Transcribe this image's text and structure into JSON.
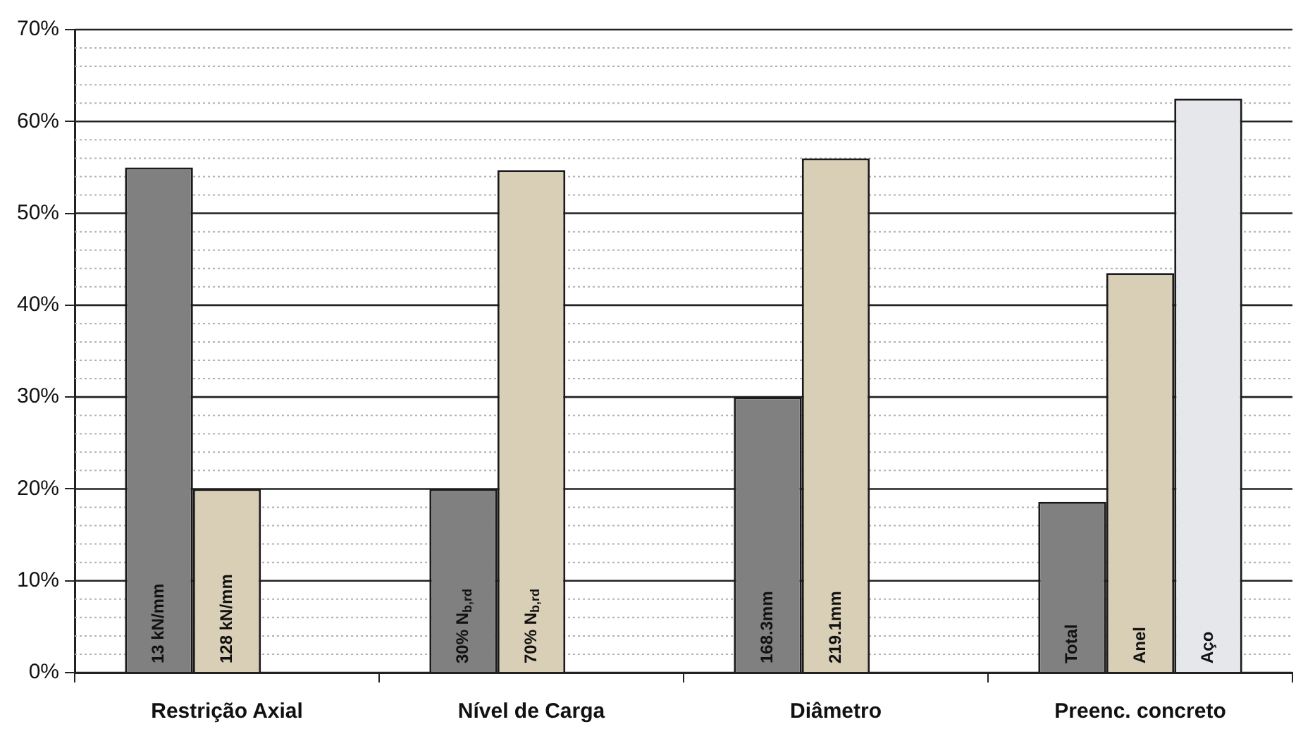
{
  "chart_data": {
    "type": "bar",
    "categories": [
      "Restrição Axial",
      "Nível de Carga",
      "Diâmetro",
      "Preenc. concreto"
    ],
    "series": [
      {
        "color": "#808080",
        "values": [
          55,
          20,
          30,
          18.6
        ]
      },
      {
        "color": "#d9ceb6",
        "values": [
          20,
          54.7,
          56,
          43.5
        ]
      },
      {
        "color": "#e6e7ea",
        "values": [
          null,
          null,
          null,
          62.5
        ]
      }
    ],
    "annotations": [
      "13 kN/mm",
      "128 kN/mm",
      "30% N$_{b,rd}$",
      "70% N$_{b,rd}$",
      "168.3mm",
      "219.1mm",
      "Total",
      "Anel",
      "Aço"
    ],
    "ylim": [
      0,
      70
    ],
    "yticks": [
      {
        "value": 0,
        "label": "0%"
      },
      {
        "value": 2,
        "label": null
      },
      {
        "value": 4,
        "label": null
      },
      {
        "value": 6,
        "label": null
      },
      {
        "value": 8,
        "label": null
      },
      {
        "value": 10,
        "label": "10%"
      },
      {
        "value": 12,
        "label": null
      },
      {
        "value": 14,
        "label": null
      },
      {
        "value": 16,
        "label": null
      },
      {
        "value": 18,
        "label": null
      },
      {
        "value": 20,
        "label": "20%"
      },
      {
        "value": 22,
        "label": null
      },
      {
        "value": 24,
        "label": null
      },
      {
        "value": 26,
        "label": null
      },
      {
        "value": 28,
        "label": null
      },
      {
        "value": 30,
        "label": "30%"
      },
      {
        "value": 32,
        "label": null
      },
      {
        "value": 34,
        "label": null
      },
      {
        "value": 36,
        "label": null
      },
      {
        "value": 38,
        "label": null
      },
      {
        "value": 40,
        "label": "40%"
      },
      {
        "value": 42,
        "label": null
      },
      {
        "value": 44,
        "label": null
      },
      {
        "value": 46,
        "label": null
      },
      {
        "value": 48,
        "label": null
      },
      {
        "value": 50,
        "label": "50%"
      },
      {
        "value": 52,
        "label": null
      },
      {
        "value": 54,
        "label": null
      },
      {
        "value": 56,
        "label": null
      },
      {
        "value": 58,
        "label": null
      },
      {
        "value": 60,
        "label": "60%"
      },
      {
        "value": 62,
        "label": null
      },
      {
        "value": 64,
        "label": null
      },
      {
        "value": 66,
        "label": null
      },
      {
        "value": 68,
        "label": null
      },
      {
        "value": 70,
        "label": "70%"
      }
    ],
    "grid": "y",
    "legend": false
  }
}
